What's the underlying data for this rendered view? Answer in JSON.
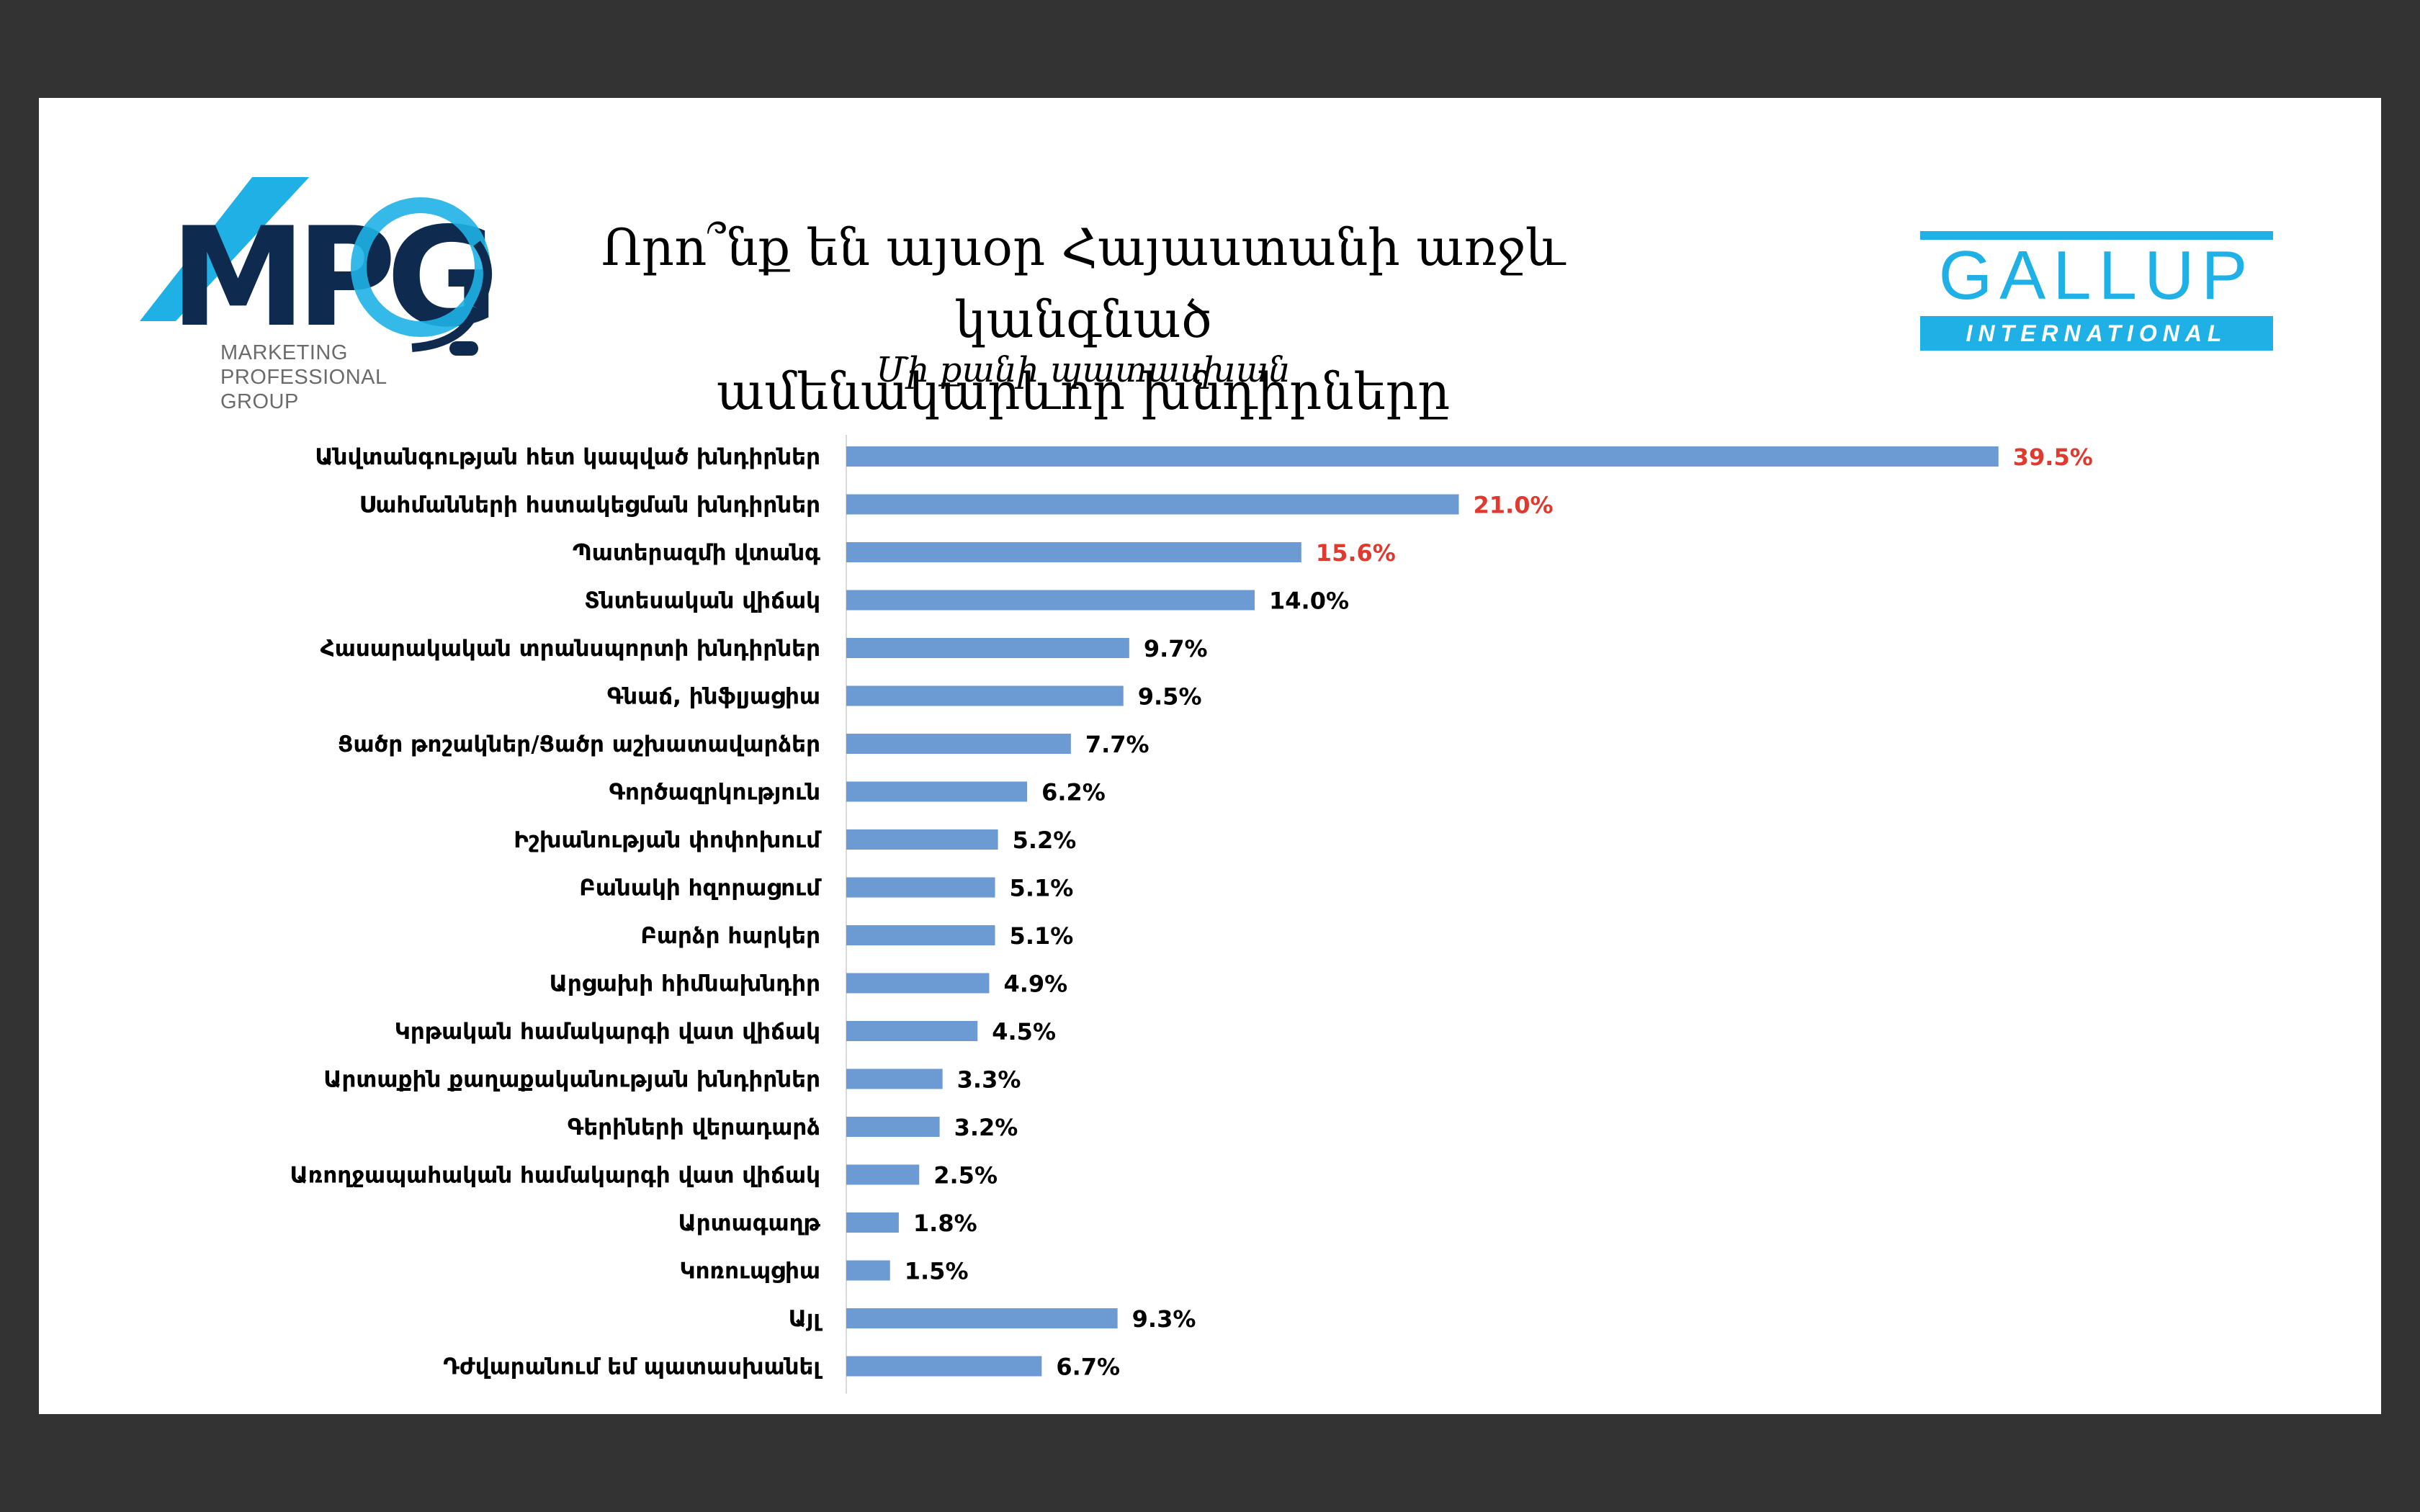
{
  "logos": {
    "mpg": {
      "wordmark": "MPG",
      "lines": [
        "MARKETING",
        "PROFESSIONAL",
        "GROUP"
      ],
      "colors": {
        "navy": "#0e2a4f",
        "blue": "#1fb1e6"
      }
    },
    "gallup": {
      "wordmark": "GALLUP",
      "sub": "INTERNATIONAL",
      "color": "#1fb1e6"
    }
  },
  "chart_data": {
    "type": "bar",
    "orientation": "horizontal",
    "title_lines": [
      "Որո՞նք են այսօր Հայաստանի առջև կանգնած",
      "ամենակարևոր խնդիրները"
    ],
    "subtitle": "Մի քանի պատասխան",
    "bar_color": "#6b9bd2",
    "highlight_color": "#e03a2f",
    "label_color": "#000000",
    "xlim": [
      0,
      40
    ],
    "grid": false,
    "value_format": "%",
    "categories": [
      "Անվտանգության հետ կապված խնդիրներ",
      "Սահմանների հստակեցման խնդիրներ",
      "Պատերազմի վտանգ",
      "Տնտեսական վիճակ",
      "Հասարակական տրանսպորտի խնդիրներ",
      "Գնաճ, ինֆլյացիա",
      "Ցածր թոշակներ/Ցածր աշխատավարձեր",
      "Գործազրկություն",
      "Իշխանության փոփոխում",
      "Բանակի հզորացում",
      "Բարձր հարկեր",
      "Արցախի հիմնախնդիր",
      "Կրթական համակարգի վատ վիճակ",
      "Արտաքին քաղաքականության խնդիրներ",
      "Գերիների վերադարձ",
      "Առողջապահական համակարգի վատ վիճակ",
      "Արտագաղթ",
      "Կոռուպցիա",
      "Այլ",
      "Դժվարանում եմ պատասխանել"
    ],
    "values": [
      39.5,
      21.0,
      15.6,
      14.0,
      9.7,
      9.5,
      7.7,
      6.2,
      5.2,
      5.1,
      5.1,
      4.9,
      4.5,
      3.3,
      3.2,
      2.5,
      1.8,
      1.5,
      9.3,
      6.7
    ],
    "highlighted": [
      true,
      true,
      true,
      false,
      false,
      false,
      false,
      false,
      false,
      false,
      false,
      false,
      false,
      false,
      false,
      false,
      false,
      false,
      false,
      false
    ]
  }
}
